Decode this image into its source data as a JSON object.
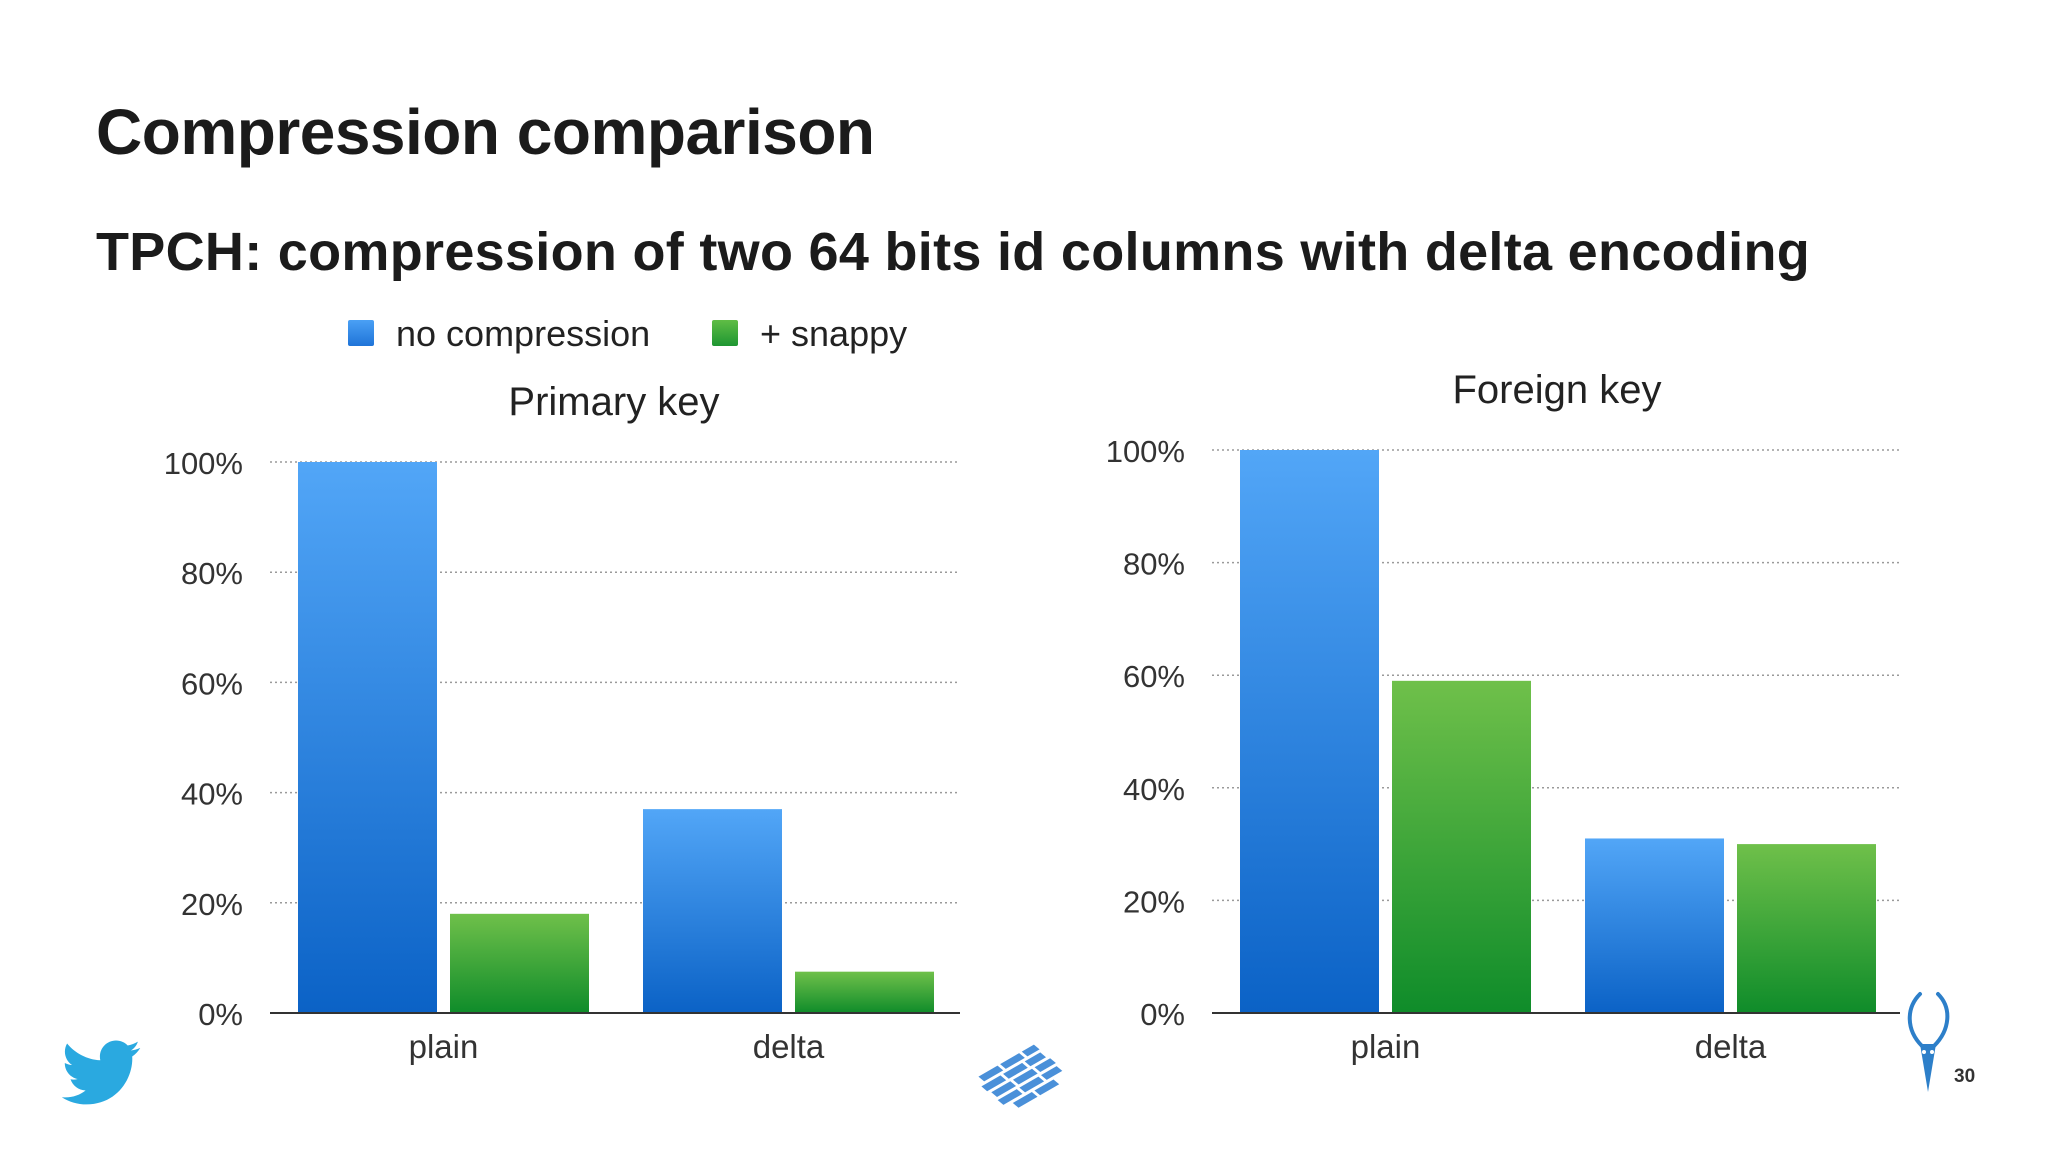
{
  "slide": {
    "title": "Compression comparison",
    "subtitle": "TPCH: compression of two 64 bits id columns with delta encoding",
    "page_number": "30"
  },
  "legend": [
    {
      "label": "no compression",
      "color": "#2c84e6"
    },
    {
      "label": "+ snappy",
      "color": "#3aa63a"
    }
  ],
  "logos": [
    "twitter-bird",
    "parquet-floor-tiles",
    "cloudera-impala-antelope"
  ],
  "chart_data": [
    {
      "type": "bar",
      "title": "Primary key",
      "categories": [
        "plain",
        "delta"
      ],
      "series": [
        {
          "name": "no compression",
          "values": [
            100,
            37
          ],
          "color": "#2c84e6"
        },
        {
          "name": "+ snappy",
          "values": [
            18,
            7.5
          ],
          "color": "#3aa63a"
        }
      ],
      "yticks": [
        "0%",
        "20%",
        "40%",
        "60%",
        "80%",
        "100%"
      ],
      "ylim": [
        0,
        100
      ],
      "grid": true,
      "legend_position": "top"
    },
    {
      "type": "bar",
      "title": "Foreign key",
      "categories": [
        "plain",
        "delta"
      ],
      "series": [
        {
          "name": "no compression",
          "values": [
            100,
            31
          ],
          "color": "#2c84e6"
        },
        {
          "name": "+ snappy",
          "values": [
            59,
            30
          ],
          "color": "#3aa63a"
        }
      ],
      "yticks": [
        "0%",
        "20%",
        "40%",
        "60%",
        "80%",
        "100%"
      ],
      "ylim": [
        0,
        100
      ],
      "grid": true,
      "legend_position": "top"
    }
  ]
}
